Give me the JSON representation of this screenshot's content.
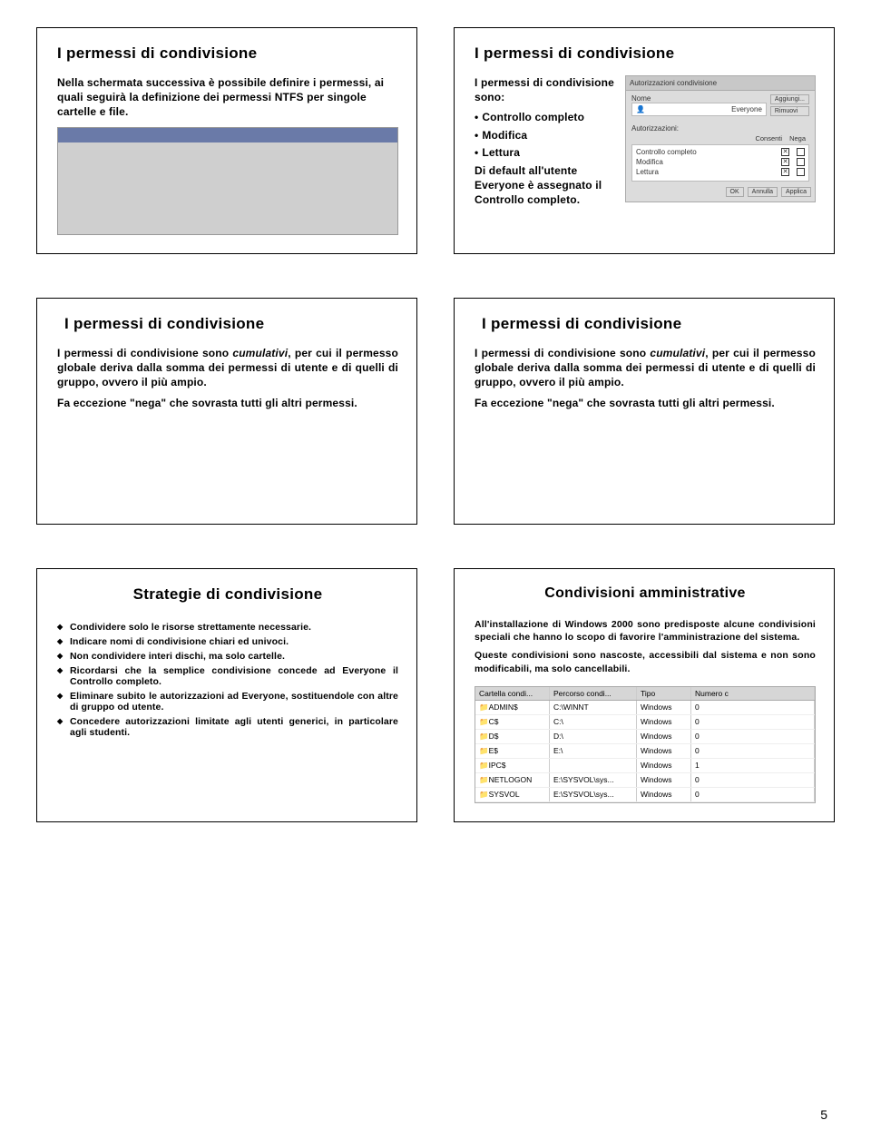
{
  "slides": {
    "s1": {
      "title": "I permessi di condivisione",
      "body": "Nella schermata successiva è possibile definire i permessi, ai quali seguirà la definizione dei permessi NTFS per singole cartelle e file."
    },
    "s2": {
      "title": "I permessi di condivisione",
      "intro": "I permessi di condivisione sono:",
      "items": [
        "Controllo completo",
        "Modifica",
        "Lettura"
      ],
      "tail": "Di default all'utente Everyone è assegnato il Controllo completo.",
      "panel": {
        "tab": "Autorizzazioni condivisione",
        "name_label": "Nome",
        "name_value": "Everyone",
        "btn_add": "Aggiungi...",
        "btn_remove": "Rimuovi",
        "auth_label": "Autorizzazioni:",
        "col_allow": "Consenti",
        "col_deny": "Nega",
        "perm1": "Controllo completo",
        "perm2": "Modifica",
        "perm3": "Lettura",
        "ok": "OK",
        "cancel": "Annulla",
        "apply": "Applica"
      }
    },
    "s3": {
      "title": "I permessi di condivisione",
      "p1a": "I permessi di condivisione sono ",
      "p1b": "cumulativi",
      "p1c": ", per cui il permesso globale deriva dalla somma dei permessi di utente e di quelli di gruppo, ovvero il più ampio.",
      "p2": "Fa eccezione \"nega\" che sovrasta tutti gli altri permessi."
    },
    "s4": {
      "title": "I permessi di condivisione",
      "p1a": "I permessi di condivisione sono ",
      "p1b": "cumulativi",
      "p1c": ", per cui il permesso globale deriva dalla somma dei permessi di utente e di quelli di gruppo, ovvero il più ampio.",
      "p2": "Fa eccezione \"nega\" che sovrasta tutti gli altri permessi."
    },
    "s5": {
      "title": "Strategie di condivisione",
      "items": [
        "Condividere solo le risorse strettamente necessarie.",
        "Indicare nomi di condivisione chiari ed univoci.",
        "Non condividere interi dischi, ma solo cartelle.",
        "Ricordarsi che la semplice condivisione concede ad Everyone il Controllo completo.",
        "Eliminare subito le autorizzazioni ad Everyone, sostituendole con altre di gruppo od utente.",
        "Concedere autorizzazioni limitate agli utenti generici, in particolare agli studenti."
      ]
    },
    "s6": {
      "title": "Condivisioni amministrative",
      "p1": "All'installazione di Windows 2000 sono predisposte alcune condivisioni speciali che hanno lo scopo di favorire l'amministrazione del sistema.",
      "p2": "Queste condivisioni sono nascoste, accessibili dal sistema e non sono modificabili, ma solo cancellabili.",
      "table": {
        "headers": [
          "Cartella condi...",
          "Percorso condi...",
          "Tipo",
          "Numero c"
        ],
        "rows": [
          [
            "ADMIN$",
            "C:\\WINNT",
            "Windows",
            "0"
          ],
          [
            "C$",
            "C:\\",
            "Windows",
            "0"
          ],
          [
            "D$",
            "D:\\",
            "Windows",
            "0"
          ],
          [
            "E$",
            "E:\\",
            "Windows",
            "0"
          ],
          [
            "IPC$",
            "",
            "Windows",
            "1"
          ],
          [
            "NETLOGON",
            "E:\\SYSVOL\\sys...",
            "Windows",
            "0"
          ],
          [
            "SYSVOL",
            "E:\\SYSVOL\\sys...",
            "Windows",
            "0"
          ]
        ]
      }
    }
  },
  "page_number": "5"
}
